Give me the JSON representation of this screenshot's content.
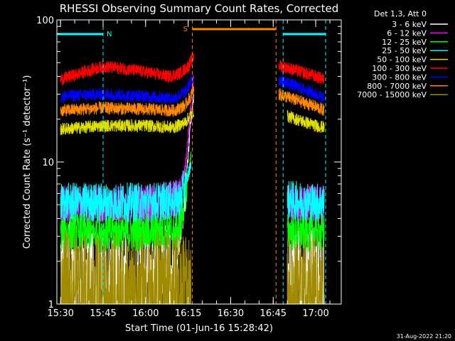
{
  "chart_data": {
    "type": "line",
    "title": "RHESSI Observing Summary Count Rates, Corrected",
    "xlabel": "Start Time (01-Jun-16 15:28:42)",
    "ylabel": "Corrected Count Rate (s⁻¹ detector⁻¹)",
    "yscale": "log",
    "ylim": [
      1,
      100
    ],
    "xlim": [
      "15:28:42",
      "17:09:00"
    ],
    "x_ticks": [
      "15:30",
      "15:45",
      "16:00",
      "16:15",
      "16:30",
      "16:45",
      "17:00"
    ],
    "y_ticks": [
      "1",
      "10",
      "100"
    ],
    "legend_title": "Det 1,3, Att 0",
    "legend_position": "right",
    "date_stamp": "31-Aug-2022 21:20",
    "series": [
      {
        "name": "3 - 6 keV",
        "color": "#ffffff",
        "x": [
          "15:30",
          "15:45",
          "16:00",
          "16:10",
          "16:14",
          "16:16",
          "16:17",
          "16:45",
          "16:50",
          "17:00",
          "17:03"
        ],
        "y": [
          2.0,
          1.5,
          1.5,
          1.8,
          6.0,
          20.0,
          30.0,
          null,
          2.0,
          1.6,
          1.6
        ]
      },
      {
        "name": "6 - 12 keV",
        "color": "#ff00ff",
        "x": [
          "15:30",
          "15:45",
          "16:00",
          "16:12",
          "16:14",
          "16:16",
          "16:17",
          "16:45",
          "16:50",
          "17:00",
          "17:03"
        ],
        "y": [
          5.0,
          5.0,
          5.0,
          5.5,
          9.0,
          25.0,
          42.0,
          null,
          5.0,
          5.0,
          5.0
        ]
      },
      {
        "name": "12 - 25 keV",
        "color": "#00ff00",
        "x": [
          "15:30",
          "15:45",
          "16:00",
          "16:12",
          "16:15",
          "16:16",
          "16:45",
          "16:50",
          "17:00",
          "17:03"
        ],
        "y": [
          3.2,
          3.2,
          3.2,
          3.3,
          8.0,
          11.0,
          null,
          3.2,
          3.2,
          3.2
        ]
      },
      {
        "name": "25 - 50 keV",
        "color": "#00ffff",
        "x": [
          "15:30",
          "15:45",
          "16:00",
          "16:12",
          "16:15",
          "16:16",
          "16:45",
          "16:50",
          "17:00",
          "17:03"
        ],
        "y": [
          5.2,
          5.2,
          5.2,
          5.4,
          8.0,
          10.0,
          null,
          5.4,
          5.2,
          5.2
        ]
      },
      {
        "name": "50 - 100 keV",
        "color": "#e0e000",
        "x": [
          "15:30",
          "15:45",
          "16:00",
          "16:10",
          "16:14",
          "16:17",
          "16:45",
          "16:50",
          "17:00",
          "17:03"
        ],
        "y": [
          17.0,
          18.0,
          18.0,
          17.5,
          19.0,
          23.0,
          null,
          21.0,
          18.0,
          17.5
        ]
      },
      {
        "name": "100 - 300 keV",
        "color": "#ff0000",
        "x": [
          "15:30",
          "15:40",
          "15:45",
          "15:50",
          "16:00",
          "16:08",
          "16:12",
          "16:15",
          "16:17",
          "16:45",
          "16:47",
          "17:00",
          "17:03"
        ],
        "y": [
          38.0,
          44.0,
          47.0,
          46.0,
          43.0,
          40.0,
          42.0,
          47.0,
          55.0,
          null,
          48.0,
          40.0,
          38.0
        ]
      },
      {
        "name": "300 - 800 keV",
        "color": "#0000ff",
        "x": [
          "15:30",
          "15:45",
          "16:00",
          "16:10",
          "16:14",
          "16:17",
          "16:45",
          "16:47",
          "17:00",
          "17:03"
        ],
        "y": [
          29.0,
          30.0,
          29.0,
          28.0,
          31.0,
          40.0,
          null,
          38.0,
          30.0,
          28.0
        ]
      },
      {
        "name": "800 - 7000 keV",
        "color": "#ff8800",
        "x": [
          "15:30",
          "15:45",
          "16:00",
          "16:10",
          "16:14",
          "16:17",
          "16:45",
          "16:47",
          "17:00",
          "17:03"
        ],
        "y": [
          23.0,
          24.0,
          23.5,
          23.0,
          25.0,
          32.0,
          null,
          30.0,
          24.5,
          23.0
        ]
      },
      {
        "name": "7000 - 15000 keV",
        "color": "#a08a00",
        "x": [
          "15:30",
          "15:45",
          "16:00",
          "16:10",
          "16:16",
          "16:45",
          "16:50",
          "17:00",
          "17:03"
        ],
        "y": [
          1.5,
          1.4,
          1.5,
          1.5,
          1.6,
          null,
          1.5,
          1.4,
          1.5
        ]
      }
    ],
    "annotations": [
      {
        "label": "N",
        "type": "night",
        "color": "#00ffff",
        "start": "15:28:42",
        "end": "15:45:00"
      },
      {
        "label": "N",
        "type": "night",
        "color": "#00ffff",
        "start": "16:48:30",
        "end": "17:03:30"
      },
      {
        "label": "S",
        "type": "saa",
        "color": "#ff8800",
        "start": "16:16:30",
        "end": "16:46:00"
      }
    ]
  }
}
